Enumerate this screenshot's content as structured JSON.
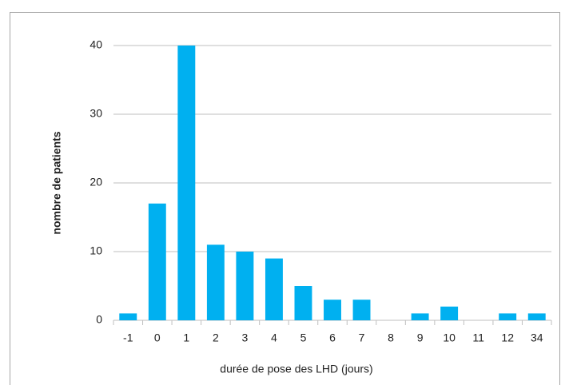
{
  "chart_data": {
    "type": "bar",
    "x_label": "durée de pose des LHD (jours)",
    "y_label": "nombre de patients",
    "categories": [
      "-1",
      "0",
      "1",
      "2",
      "3",
      "4",
      "5",
      "6",
      "7",
      "8",
      "9",
      "10",
      "11",
      "12",
      "34"
    ],
    "values": [
      1,
      17,
      40,
      11,
      10,
      9,
      5,
      3,
      3,
      0,
      1,
      2,
      0,
      1,
      1
    ],
    "color": "#00b0f0",
    "ylim": [
      0,
      40
    ],
    "yticks": [
      0,
      10,
      20,
      30,
      40
    ],
    "grid": true
  }
}
